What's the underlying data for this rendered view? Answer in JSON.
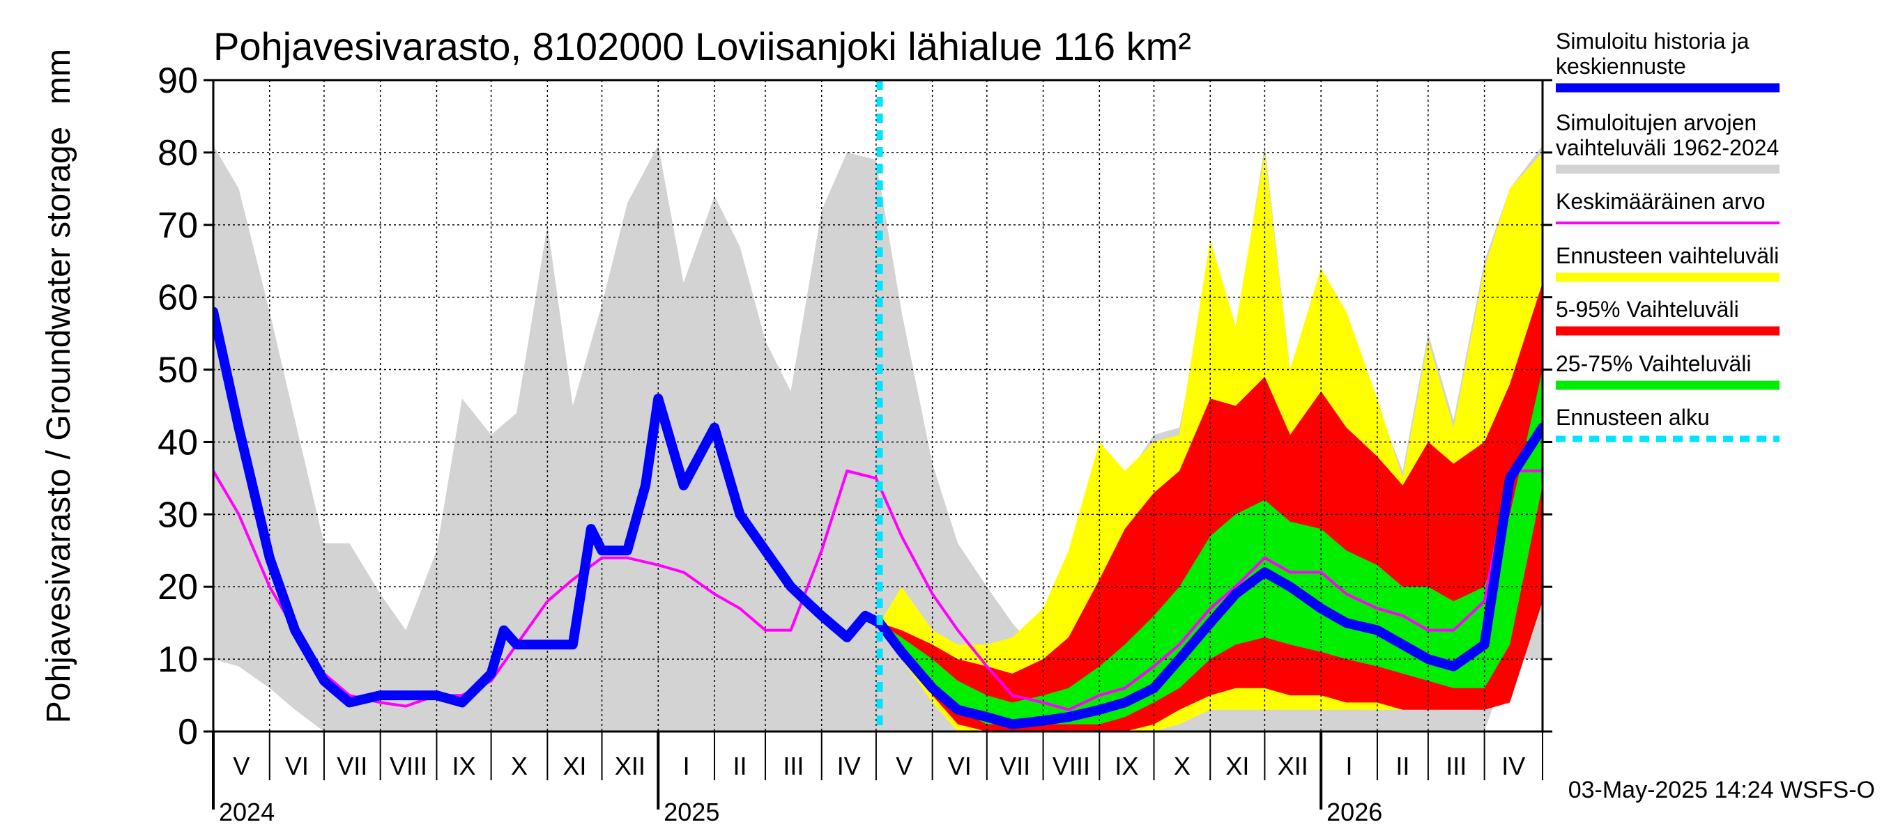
{
  "chart_data": {
    "type": "area",
    "title": "Pohjavesivarasto, 8102000 Loviisanjoki lähialue 116 km²",
    "ylabel": "Pohjavesivarasto / Groundwater storage",
    "yunit": "mm",
    "ylim": [
      0,
      90
    ],
    "yticks": [
      0,
      10,
      20,
      30,
      40,
      50,
      60,
      70,
      80,
      90
    ],
    "xlim": [
      "2024-05-01",
      "2026-05-03"
    ],
    "x_month_labels": [
      {
        "label": "V",
        "start": "2024-05-01"
      },
      {
        "label": "VI",
        "start": "2024-06-01"
      },
      {
        "label": "VII",
        "start": "2024-07-01"
      },
      {
        "label": "VIII",
        "start": "2024-08-01"
      },
      {
        "label": "IX",
        "start": "2024-09-01"
      },
      {
        "label": "X",
        "start": "2024-10-01"
      },
      {
        "label": "XI",
        "start": "2024-11-01"
      },
      {
        "label": "XII",
        "start": "2024-12-01"
      },
      {
        "label": "I",
        "start": "2025-01-01"
      },
      {
        "label": "II",
        "start": "2025-02-01"
      },
      {
        "label": "III",
        "start": "2025-03-01"
      },
      {
        "label": "IV",
        "start": "2025-04-01"
      },
      {
        "label": "V",
        "start": "2025-05-01"
      },
      {
        "label": "VI",
        "start": "2025-06-01"
      },
      {
        "label": "VII",
        "start": "2025-07-01"
      },
      {
        "label": "VIII",
        "start": "2025-08-01"
      },
      {
        "label": "IX",
        "start": "2025-09-01"
      },
      {
        "label": "X",
        "start": "2025-10-01"
      },
      {
        "label": "XI",
        "start": "2025-11-01"
      },
      {
        "label": "XII",
        "start": "2025-12-01"
      },
      {
        "label": "I",
        "start": "2026-01-01"
      },
      {
        "label": "II",
        "start": "2026-02-01"
      },
      {
        "label": "III",
        "start": "2026-03-01"
      },
      {
        "label": "IV",
        "start": "2026-04-01"
      }
    ],
    "x_year_labels": [
      {
        "label": "2024",
        "date": "2024-05-01"
      },
      {
        "label": "2025",
        "date": "2025-01-01"
      },
      {
        "label": "2026",
        "date": "2026-01-01"
      }
    ],
    "forecast_start": "2025-05-03",
    "grid": true,
    "legend_position": "right",
    "footer": "03-May-2025 14:24 WSFS-O",
    "series": [
      {
        "name": "Simuloitujen arvojen vaihteluväli 1962-2024",
        "kind": "band",
        "color": "#d3d3d3",
        "x": [
          "2024-05-01",
          "2024-05-15",
          "2024-06-01",
          "2024-06-15",
          "2024-07-01",
          "2024-07-15",
          "2024-08-01",
          "2024-08-15",
          "2024-09-01",
          "2024-09-15",
          "2024-10-01",
          "2024-10-15",
          "2024-11-01",
          "2024-11-15",
          "2024-12-01",
          "2024-12-15",
          "2025-01-01",
          "2025-01-15",
          "2025-02-01",
          "2025-02-15",
          "2025-03-01",
          "2025-03-15",
          "2025-04-01",
          "2025-04-15",
          "2025-05-01",
          "2025-05-15",
          "2025-06-01",
          "2025-06-15",
          "2025-07-01",
          "2025-07-15",
          "2025-08-01",
          "2025-08-15",
          "2025-09-01",
          "2025-09-15",
          "2025-10-01",
          "2025-10-15",
          "2025-11-01",
          "2025-11-15",
          "2025-12-01",
          "2025-12-15",
          "2026-01-01",
          "2026-01-15",
          "2026-02-01",
          "2026-02-15",
          "2026-03-01",
          "2026-03-15",
          "2026-04-01",
          "2026-04-15",
          "2026-05-03"
        ],
        "low": [
          10,
          9,
          6,
          3,
          0,
          0,
          0,
          0,
          0,
          0,
          0,
          0,
          0,
          0,
          0,
          0,
          0,
          0,
          0,
          0,
          0,
          0,
          0,
          0,
          0,
          0,
          0,
          0,
          0,
          0,
          0,
          0,
          0,
          0,
          0,
          0,
          0,
          0,
          0,
          0,
          0,
          0,
          0,
          0,
          0,
          0,
          0,
          10,
          10
        ],
        "high": [
          81,
          75,
          58,
          43,
          26,
          26,
          19,
          14,
          25,
          46,
          41,
          44,
          70,
          45,
          59,
          73,
          81,
          62,
          74,
          67,
          54,
          47,
          72,
          80,
          79,
          58,
          37,
          26,
          20,
          15,
          10,
          20,
          40,
          35,
          41,
          42,
          64,
          55,
          81,
          50,
          64,
          58,
          45,
          36,
          55,
          43,
          65,
          75,
          81
        ]
      },
      {
        "name": "Ennusteen vaihteluväli",
        "kind": "band",
        "color": "#ffff00",
        "x": [
          "2025-05-03",
          "2025-05-15",
          "2025-06-01",
          "2025-06-15",
          "2025-07-01",
          "2025-07-15",
          "2025-08-01",
          "2025-08-15",
          "2025-09-01",
          "2025-09-15",
          "2025-10-01",
          "2025-10-15",
          "2025-11-01",
          "2025-11-15",
          "2025-12-01",
          "2025-12-15",
          "2026-01-01",
          "2026-01-15",
          "2026-02-01",
          "2026-02-15",
          "2026-03-01",
          "2026-03-15",
          "2026-04-01",
          "2026-04-15",
          "2026-05-03"
        ],
        "low": [
          15,
          10,
          4,
          0,
          0,
          0,
          0,
          0,
          0,
          0,
          0,
          1,
          3,
          3,
          3,
          3,
          3,
          3,
          3,
          3,
          3,
          3,
          3,
          18,
          19
        ],
        "high": [
          15,
          20,
          14,
          12,
          12,
          13,
          17,
          25,
          40,
          36,
          40,
          41,
          68,
          56,
          80,
          50,
          64,
          58,
          46,
          35,
          54,
          42,
          64,
          75,
          80
        ]
      },
      {
        "name": "5-95% Vaihteluväli",
        "kind": "band",
        "color": "#ff0000",
        "x": [
          "2025-05-03",
          "2025-05-15",
          "2025-06-01",
          "2025-06-15",
          "2025-07-01",
          "2025-07-15",
          "2025-08-01",
          "2025-08-15",
          "2025-09-01",
          "2025-09-15",
          "2025-10-01",
          "2025-10-15",
          "2025-11-01",
          "2025-11-15",
          "2025-12-01",
          "2025-12-15",
          "2026-01-01",
          "2026-01-15",
          "2026-02-01",
          "2026-02-15",
          "2026-03-01",
          "2026-03-15",
          "2026-04-01",
          "2026-04-15",
          "2026-05-03"
        ],
        "low": [
          15,
          11,
          5,
          1,
          0,
          0,
          0,
          0,
          0,
          0,
          1,
          3,
          5,
          6,
          6,
          5,
          5,
          4,
          4,
          3,
          3,
          3,
          3,
          4,
          18
        ],
        "high": [
          15,
          14,
          12,
          10,
          9,
          8,
          10,
          13,
          21,
          28,
          33,
          36,
          46,
          45,
          49,
          41,
          47,
          42,
          38,
          34,
          40,
          37,
          40,
          48,
          62
        ]
      },
      {
        "name": "25-75% Vaihteluväli",
        "kind": "band",
        "color": "#00ee00",
        "x": [
          "2025-05-03",
          "2025-05-15",
          "2025-06-01",
          "2025-06-15",
          "2025-07-01",
          "2025-07-15",
          "2025-08-01",
          "2025-08-15",
          "2025-09-01",
          "2025-09-15",
          "2025-10-01",
          "2025-10-15",
          "2025-11-01",
          "2025-11-15",
          "2025-12-01",
          "2025-12-15",
          "2026-01-01",
          "2026-01-15",
          "2026-02-01",
          "2026-02-15",
          "2026-03-01",
          "2026-03-15",
          "2026-04-01",
          "2026-04-15",
          "2026-05-03"
        ],
        "low": [
          15,
          12,
          7,
          3,
          1,
          1,
          1,
          1,
          1,
          2,
          4,
          6,
          10,
          12,
          13,
          12,
          11,
          10,
          9,
          8,
          7,
          6,
          6,
          12,
          34
        ],
        "high": [
          15,
          13,
          10,
          7,
          5,
          4,
          5,
          6,
          9,
          12,
          16,
          20,
          27,
          30,
          32,
          29,
          28,
          25,
          23,
          20,
          20,
          18,
          20,
          30,
          50
        ]
      },
      {
        "name": "Keskimääräinen arvo",
        "kind": "line",
        "color": "#ff00ff",
        "x": [
          "2024-05-01",
          "2024-05-15",
          "2024-06-01",
          "2024-06-15",
          "2024-07-01",
          "2024-07-15",
          "2024-08-01",
          "2024-08-15",
          "2024-09-01",
          "2024-09-15",
          "2024-10-01",
          "2024-10-15",
          "2024-11-01",
          "2024-11-15",
          "2024-12-01",
          "2024-12-15",
          "2025-01-01",
          "2025-01-15",
          "2025-02-01",
          "2025-02-15",
          "2025-03-01",
          "2025-03-15",
          "2025-04-01",
          "2025-04-15",
          "2025-05-01",
          "2025-05-15",
          "2025-06-01",
          "2025-06-15",
          "2025-07-01",
          "2025-07-15",
          "2025-08-01",
          "2025-08-15",
          "2025-09-01",
          "2025-09-15",
          "2025-10-01",
          "2025-10-15",
          "2025-11-01",
          "2025-11-15",
          "2025-12-01",
          "2025-12-15",
          "2026-01-01",
          "2026-01-15",
          "2026-02-01",
          "2026-02-15",
          "2026-03-01",
          "2026-03-15",
          "2026-04-01",
          "2026-04-15",
          "2026-05-03"
        ],
        "values": [
          36,
          30,
          20,
          14,
          8,
          5,
          4,
          3.5,
          5,
          5,
          7,
          12,
          18,
          21,
          24,
          24,
          23,
          22,
          19,
          17,
          14,
          14,
          25,
          36,
          35,
          27,
          19,
          14,
          9,
          5,
          4,
          3,
          5,
          6,
          9,
          12,
          17,
          20,
          24,
          22,
          22,
          19,
          17,
          16,
          14,
          14,
          18,
          36,
          36
        ]
      },
      {
        "name": "Simuloitu historia ja keskiennuste",
        "kind": "line",
        "color": "#0000ff",
        "x": [
          "2024-05-01",
          "2024-05-15",
          "2024-06-01",
          "2024-06-15",
          "2024-07-01",
          "2024-07-15",
          "2024-08-01",
          "2024-08-15",
          "2024-09-01",
          "2024-09-15",
          "2024-10-01",
          "2024-10-08",
          "2024-10-15",
          "2024-11-01",
          "2024-11-15",
          "2024-11-25",
          "2024-12-01",
          "2024-12-15",
          "2024-12-25",
          "2025-01-01",
          "2025-01-15",
          "2025-02-01",
          "2025-02-15",
          "2025-03-01",
          "2025-03-15",
          "2025-04-01",
          "2025-04-15",
          "2025-04-25",
          "2025-05-03",
          "2025-05-15",
          "2025-06-01",
          "2025-06-15",
          "2025-07-01",
          "2025-07-15",
          "2025-08-01",
          "2025-08-15",
          "2025-09-01",
          "2025-09-15",
          "2025-10-01",
          "2025-10-15",
          "2025-11-01",
          "2025-11-15",
          "2025-12-01",
          "2025-12-15",
          "2026-01-01",
          "2026-01-15",
          "2026-02-01",
          "2026-02-15",
          "2026-03-01",
          "2026-03-15",
          "2026-04-01",
          "2026-04-15",
          "2026-05-03"
        ],
        "values": [
          58,
          42,
          24,
          14,
          7,
          4,
          5,
          5,
          5,
          4,
          8,
          14,
          12,
          12,
          12,
          28,
          25,
          25,
          34,
          46,
          34,
          42,
          30,
          25,
          20,
          16,
          13,
          16,
          15,
          11,
          6,
          3,
          2,
          1,
          1.5,
          2,
          3,
          4,
          6,
          10,
          15,
          19,
          22,
          20,
          17,
          15,
          14,
          12,
          10,
          9,
          12,
          35,
          42
        ]
      }
    ]
  },
  "legend": [
    {
      "label": "Simuloitu historia ja keskiennuste",
      "color": "#0000ff",
      "style": "solid"
    },
    {
      "label": "Simuloitujen arvojen vaihteluväli 1962-2024",
      "color": "#d3d3d3",
      "style": "solid"
    },
    {
      "label": "Keskimääräinen arvo",
      "color": "#ff00ff",
      "style": "thin"
    },
    {
      "label": "Ennusteen vaihteluväli",
      "color": "#ffff00",
      "style": "solid"
    },
    {
      "label": "5-95% Vaihteluväli",
      "color": "#ff0000",
      "style": "solid"
    },
    {
      "label": "25-75% Vaihteluväli",
      "color": "#00ee00",
      "style": "solid"
    },
    {
      "label": "Ennusteen alku",
      "color": "#00e5ff",
      "style": "dashed"
    }
  ]
}
